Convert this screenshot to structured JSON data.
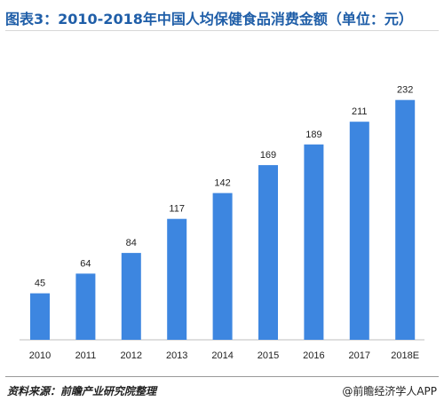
{
  "header": {
    "title": "图表3：2010-2018年中国人均保健食品消费金额（单位：元）"
  },
  "chart_data": {
    "type": "bar",
    "categories": [
      "2010",
      "2011",
      "2012",
      "2013",
      "2014",
      "2015",
      "2016",
      "2017",
      "2018E"
    ],
    "values": [
      45,
      64,
      84,
      117,
      142,
      169,
      189,
      211,
      232
    ],
    "title": "图表3：2010-2018年中国人均保健食品消费金额（单位：元）",
    "xlabel": "",
    "ylabel": "",
    "ylim": [
      0,
      250
    ],
    "grid": false,
    "legend": "none",
    "bar_color": "#3d86e0"
  },
  "footer": {
    "source": "资料来源：前瞻产业研究院整理",
    "brand": "@前瞻经济学人APP"
  }
}
